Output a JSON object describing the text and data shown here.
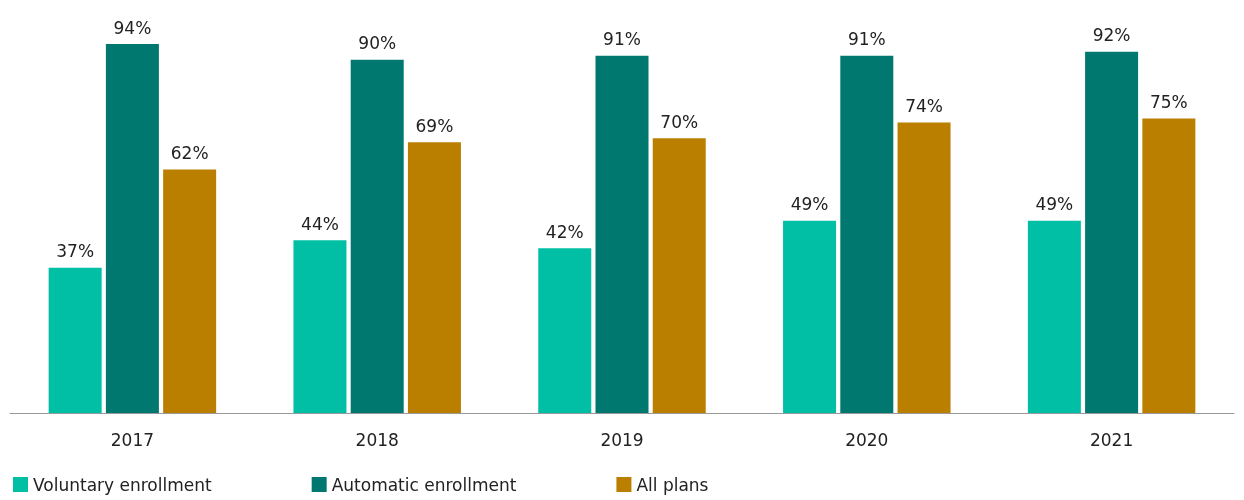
{
  "chart_data": {
    "type": "bar",
    "categories": [
      "2017",
      "2018",
      "2019",
      "2020",
      "2021"
    ],
    "series": [
      {
        "name": "Voluntary enrollment",
        "color": "#00bfa5",
        "values": [
          37,
          44,
          42,
          49,
          49
        ],
        "value_labels": [
          "37%",
          "44%",
          "42%",
          "49%",
          "49%"
        ]
      },
      {
        "name": "Automatic enrollment",
        "color": "#00786f",
        "values": [
          94,
          90,
          91,
          91,
          92
        ],
        "value_labels": [
          "94%",
          "90%",
          "91%",
          "91%",
          "92%"
        ]
      },
      {
        "name": "All plans",
        "color": "#bb7f00",
        "values": [
          62,
          69,
          70,
          74,
          75
        ],
        "value_labels": [
          "62%",
          "69%",
          "70%",
          "74%",
          "75%"
        ]
      }
    ],
    "legend": "bottom left",
    "grid": false
  }
}
